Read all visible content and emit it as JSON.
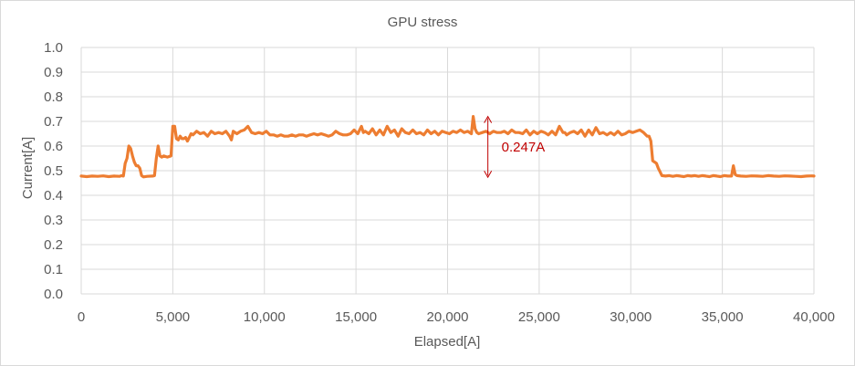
{
  "chart_data": {
    "type": "line",
    "title": "GPU stress",
    "xlabel": "Elapsed[A]",
    "ylabel": "Current[A]",
    "xlim": [
      0,
      40000
    ],
    "ylim": [
      0,
      1.0
    ],
    "x_ticks": [
      "0",
      "5,000",
      "10,000",
      "15,000",
      "20,000",
      "25,000",
      "30,000",
      "35,000",
      "40,000"
    ],
    "y_ticks": [
      "0.0",
      "0.1",
      "0.2",
      "0.3",
      "0.4",
      "0.5",
      "0.6",
      "0.7",
      "0.8",
      "0.9",
      "1.0"
    ],
    "grid": "horizontal and vertical",
    "legend": "none",
    "series": [
      {
        "color": "#ed7d31",
        "x": [
          0,
          300,
          600,
          900,
          1200,
          1500,
          1800,
          2100,
          2200,
          2300,
          2400,
          2500,
          2600,
          2700,
          2800,
          2900,
          3000,
          3100,
          3200,
          3300,
          3400,
          3600,
          3900,
          4000,
          4100,
          4200,
          4300,
          4400,
          4500,
          4700,
          4900,
          5000,
          5100,
          5200,
          5300,
          5400,
          5500,
          5600,
          5700,
          5800,
          5900,
          6000,
          6100,
          6300,
          6500,
          6700,
          6900,
          7100,
          7300,
          7500,
          7700,
          7900,
          8100,
          8200,
          8300,
          8500,
          8700,
          8900,
          9100,
          9300,
          9500,
          9700,
          9900,
          10100,
          10300,
          10500,
          10700,
          10900,
          11100,
          11300,
          11500,
          11700,
          11900,
          12100,
          12300,
          12500,
          12700,
          12900,
          13100,
          13300,
          13500,
          13700,
          13900,
          14100,
          14300,
          14500,
          14700,
          14900,
          15100,
          15300,
          15400,
          15500,
          15700,
          15900,
          16100,
          16300,
          16500,
          16700,
          16900,
          17100,
          17300,
          17500,
          17700,
          17900,
          18100,
          18300,
          18500,
          18700,
          18900,
          19100,
          19300,
          19500,
          19700,
          19900,
          20100,
          20300,
          20500,
          20700,
          20900,
          21100,
          21300,
          21400,
          21500,
          21600,
          21700,
          21900,
          22100,
          22300,
          22500,
          22700,
          22900,
          23100,
          23300,
          23500,
          23700,
          23900,
          24100,
          24300,
          24500,
          24700,
          24900,
          25100,
          25300,
          25500,
          25700,
          25900,
          26100,
          26300,
          26400,
          26500,
          26700,
          26900,
          27100,
          27300,
          27500,
          27700,
          27900,
          28100,
          28300,
          28500,
          28700,
          28900,
          29100,
          29300,
          29500,
          29700,
          29900,
          30100,
          30300,
          30500,
          30700,
          30900,
          31000,
          31100,
          31200,
          31300,
          31400,
          31500,
          31600,
          31700,
          31900,
          32100,
          32300,
          32500,
          32700,
          32900,
          33100,
          33300,
          33500,
          33700,
          33900,
          34100,
          34300,
          34500,
          34700,
          34900,
          35100,
          35300,
          35500,
          35600,
          35700,
          35800,
          36000,
          36300,
          36600,
          36900,
          37200,
          37500,
          37800,
          38100,
          38400,
          38700,
          39000,
          39300,
          39600,
          39900,
          40000
        ],
        "y": [
          0.478,
          0.476,
          0.478,
          0.477,
          0.479,
          0.476,
          0.478,
          0.477,
          0.48,
          0.478,
          0.53,
          0.55,
          0.6,
          0.59,
          0.56,
          0.535,
          0.52,
          0.52,
          0.51,
          0.48,
          0.475,
          0.477,
          0.478,
          0.48,
          0.55,
          0.6,
          0.56,
          0.555,
          0.56,
          0.555,
          0.56,
          0.68,
          0.68,
          0.63,
          0.625,
          0.64,
          0.63,
          0.63,
          0.635,
          0.62,
          0.635,
          0.65,
          0.645,
          0.66,
          0.65,
          0.655,
          0.64,
          0.66,
          0.65,
          0.655,
          0.65,
          0.66,
          0.64,
          0.625,
          0.66,
          0.65,
          0.66,
          0.665,
          0.68,
          0.655,
          0.65,
          0.655,
          0.65,
          0.66,
          0.645,
          0.645,
          0.64,
          0.645,
          0.64,
          0.64,
          0.645,
          0.64,
          0.645,
          0.645,
          0.64,
          0.645,
          0.65,
          0.645,
          0.65,
          0.645,
          0.64,
          0.645,
          0.66,
          0.65,
          0.645,
          0.645,
          0.65,
          0.665,
          0.65,
          0.68,
          0.655,
          0.66,
          0.65,
          0.67,
          0.645,
          0.665,
          0.645,
          0.68,
          0.655,
          0.665,
          0.64,
          0.67,
          0.655,
          0.65,
          0.665,
          0.65,
          0.655,
          0.645,
          0.665,
          0.65,
          0.66,
          0.645,
          0.66,
          0.655,
          0.65,
          0.66,
          0.655,
          0.665,
          0.655,
          0.66,
          0.65,
          0.72,
          0.67,
          0.655,
          0.65,
          0.655,
          0.66,
          0.65,
          0.66,
          0.655,
          0.655,
          0.66,
          0.65,
          0.665,
          0.655,
          0.655,
          0.65,
          0.665,
          0.645,
          0.66,
          0.65,
          0.66,
          0.655,
          0.645,
          0.66,
          0.645,
          0.68,
          0.655,
          0.655,
          0.645,
          0.655,
          0.66,
          0.65,
          0.665,
          0.64,
          0.665,
          0.645,
          0.675,
          0.65,
          0.655,
          0.645,
          0.655,
          0.645,
          0.66,
          0.645,
          0.65,
          0.66,
          0.655,
          0.66,
          0.665,
          0.655,
          0.64,
          0.64,
          0.62,
          0.54,
          0.535,
          0.53,
          0.51,
          0.495,
          0.48,
          0.478,
          0.48,
          0.477,
          0.48,
          0.478,
          0.476,
          0.48,
          0.478,
          0.48,
          0.477,
          0.48,
          0.478,
          0.476,
          0.48,
          0.478,
          0.476,
          0.48,
          0.478,
          0.478,
          0.52,
          0.485,
          0.48,
          0.478,
          0.477,
          0.479,
          0.478,
          0.477,
          0.48,
          0.478,
          0.477,
          0.479,
          0.478,
          0.477,
          0.476,
          0.478,
          0.479,
          0.478
        ]
      }
    ],
    "annotations": [
      {
        "text": "0.247A",
        "x": 22200,
        "y_top": 0.72,
        "y_bottom": 0.473,
        "color": "#c00000"
      }
    ]
  }
}
